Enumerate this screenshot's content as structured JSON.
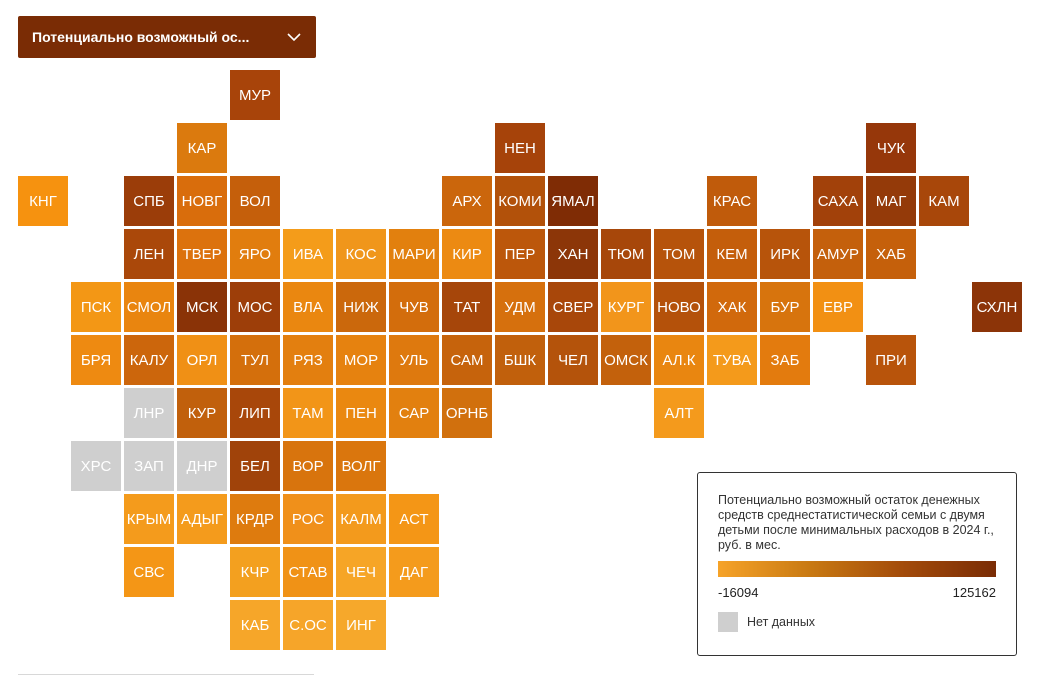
{
  "dropdown": {
    "label": "Потенциально возможный ос...",
    "icon": "chevron-down-icon"
  },
  "legend": {
    "title": "Потенциально возможный остаток денежных средств среднестатистической семьи с двумя детьми после минимальных расходов в 2024 г., руб. в мес.",
    "min_label": "-16094",
    "max_label": "125162",
    "gradient_colors": [
      "#f6a329",
      "#c87912",
      "#a34b0a",
      "#7a2c05"
    ],
    "no_data_label": "Нет данных",
    "no_data_color": "#cfcfcf"
  },
  "tiles": [
    {
      "code": "МУР",
      "row": 0,
      "col": 4,
      "color": "#a8440a"
    },
    {
      "code": "КАР",
      "row": 1,
      "col": 3,
      "color": "#db7a0e"
    },
    {
      "code": "НЕН",
      "row": 1,
      "col": 9,
      "color": "#a6430a"
    },
    {
      "code": "ЧУК",
      "row": 1,
      "col": 16,
      "color": "#96370a"
    },
    {
      "code": "КНГ",
      "row": 2,
      "col": 0,
      "color": "#f6920f"
    },
    {
      "code": "СПБ",
      "row": 2,
      "col": 2,
      "color": "#9b3d09"
    },
    {
      "code": "НОВГ",
      "row": 2,
      "col": 3,
      "color": "#d96d0c"
    },
    {
      "code": "ВОЛ",
      "row": 2,
      "col": 4,
      "color": "#c55f0b"
    },
    {
      "code": "АРХ",
      "row": 2,
      "col": 8,
      "color": "#cb660c"
    },
    {
      "code": "КОМИ",
      "row": 2,
      "col": 9,
      "color": "#b2510a"
    },
    {
      "code": "ЯМАЛ",
      "row": 2,
      "col": 10,
      "color": "#7f2c05"
    },
    {
      "code": "КРАС",
      "row": 2,
      "col": 13,
      "color": "#c05b0b"
    },
    {
      "code": "САХА",
      "row": 2,
      "col": 15,
      "color": "#a2410a"
    },
    {
      "code": "МАГ",
      "row": 2,
      "col": 16,
      "color": "#943a09"
    },
    {
      "code": "КАМ",
      "row": 2,
      "col": 17,
      "color": "#a8470a"
    },
    {
      "code": "ЛЕН",
      "row": 3,
      "col": 2,
      "color": "#aa480a"
    },
    {
      "code": "ТВЕР",
      "row": 3,
      "col": 3,
      "color": "#dc720d"
    },
    {
      "code": "ЯРО",
      "row": 3,
      "col": 4,
      "color": "#e17d0e"
    },
    {
      "code": "ИВА",
      "row": 3,
      "col": 5,
      "color": "#f49c1a"
    },
    {
      "code": "КОС",
      "row": 3,
      "col": 6,
      "color": "#f0961b"
    },
    {
      "code": "МАРИ",
      "row": 3,
      "col": 7,
      "color": "#e2800e"
    },
    {
      "code": "КИР",
      "row": 3,
      "col": 8,
      "color": "#ec8a12"
    },
    {
      "code": "ПЕР",
      "row": 3,
      "col": 9,
      "color": "#bc570b"
    },
    {
      "code": "ХАН",
      "row": 3,
      "col": 10,
      "color": "#8c3608"
    },
    {
      "code": "ТЮМ",
      "row": 3,
      "col": 11,
      "color": "#a7470a"
    },
    {
      "code": "ТОМ",
      "row": 3,
      "col": 12,
      "color": "#b6530b"
    },
    {
      "code": "КЕМ",
      "row": 3,
      "col": 13,
      "color": "#c45e0b"
    },
    {
      "code": "ИРК",
      "row": 3,
      "col": 14,
      "color": "#b7540b"
    },
    {
      "code": "АМУР",
      "row": 3,
      "col": 15,
      "color": "#c4600c"
    },
    {
      "code": "ХАБ",
      "row": 3,
      "col": 16,
      "color": "#c5600b"
    },
    {
      "code": "ПСК",
      "row": 4,
      "col": 1,
      "color": "#f39715"
    },
    {
      "code": "СМОЛ",
      "row": 4,
      "col": 2,
      "color": "#e9850f"
    },
    {
      "code": "МСК",
      "row": 4,
      "col": 3,
      "color": "#8a3307"
    },
    {
      "code": "МОС",
      "row": 4,
      "col": 4,
      "color": "#9d3e09"
    },
    {
      "code": "ВЛА",
      "row": 4,
      "col": 5,
      "color": "#ea8710"
    },
    {
      "code": "НИЖ",
      "row": 4,
      "col": 6,
      "color": "#cb680c"
    },
    {
      "code": "ЧУВ",
      "row": 4,
      "col": 7,
      "color": "#d36d0c"
    },
    {
      "code": "ТАТ",
      "row": 4,
      "col": 8,
      "color": "#a6460a"
    },
    {
      "code": "УДМ",
      "row": 4,
      "col": 9,
      "color": "#d6700d"
    },
    {
      "code": "СВЕР",
      "row": 4,
      "col": 10,
      "color": "#a8470a"
    },
    {
      "code": "КУРГ",
      "row": 4,
      "col": 11,
      "color": "#f2951b"
    },
    {
      "code": "НОВО",
      "row": 4,
      "col": 12,
      "color": "#b4510a"
    },
    {
      "code": "ХАК",
      "row": 4,
      "col": 13,
      "color": "#d1690c"
    },
    {
      "code": "БУР",
      "row": 4,
      "col": 14,
      "color": "#d7740d"
    },
    {
      "code": "ЕВР",
      "row": 4,
      "col": 15,
      "color": "#f29013"
    },
    {
      "code": "СХЛН",
      "row": 4,
      "col": 18,
      "color": "#8c3408"
    },
    {
      "code": "БРЯ",
      "row": 5,
      "col": 1,
      "color": "#ee8a11"
    },
    {
      "code": "КАЛУ",
      "row": 5,
      "col": 2,
      "color": "#cc660c"
    },
    {
      "code": "ОРЛ",
      "row": 5,
      "col": 3,
      "color": "#f09015"
    },
    {
      "code": "ТУЛ",
      "row": 5,
      "col": 4,
      "color": "#d46f0c"
    },
    {
      "code": "РЯЗ",
      "row": 5,
      "col": 5,
      "color": "#e37f0f"
    },
    {
      "code": "МОР",
      "row": 5,
      "col": 6,
      "color": "#e6820f"
    },
    {
      "code": "УЛЬ",
      "row": 5,
      "col": 7,
      "color": "#de790e"
    },
    {
      "code": "САМ",
      "row": 5,
      "col": 8,
      "color": "#c6630c"
    },
    {
      "code": "БШК",
      "row": 5,
      "col": 9,
      "color": "#c1600c"
    },
    {
      "code": "ЧЕЛ",
      "row": 5,
      "col": 10,
      "color": "#b4530b"
    },
    {
      "code": "ОМСК",
      "row": 5,
      "col": 11,
      "color": "#c3610c"
    },
    {
      "code": "АЛ.К",
      "row": 5,
      "col": 12,
      "color": "#e98610"
    },
    {
      "code": "ТУВА",
      "row": 5,
      "col": 13,
      "color": "#f49a1b"
    },
    {
      "code": "ЗАБ",
      "row": 5,
      "col": 14,
      "color": "#e37b0e"
    },
    {
      "code": "ПРИ",
      "row": 5,
      "col": 16,
      "color": "#b8540b"
    },
    {
      "code": "ЛНР",
      "row": 6,
      "col": 2,
      "color": "#cfcfcf"
    },
    {
      "code": "КУР",
      "row": 6,
      "col": 3,
      "color": "#c1600c"
    },
    {
      "code": "ЛИП",
      "row": 6,
      "col": 4,
      "color": "#a8470a"
    },
    {
      "code": "ТАМ",
      "row": 6,
      "col": 5,
      "color": "#f29518"
    },
    {
      "code": "ПЕН",
      "row": 6,
      "col": 6,
      "color": "#ea8810"
    },
    {
      "code": "САР",
      "row": 6,
      "col": 7,
      "color": "#e2800f"
    },
    {
      "code": "ОРНБ",
      "row": 6,
      "col": 8,
      "color": "#d1700d"
    },
    {
      "code": "АЛТ",
      "row": 6,
      "col": 12,
      "color": "#f49a1c"
    },
    {
      "code": "ХРС",
      "row": 7,
      "col": 1,
      "color": "#cfcfcf"
    },
    {
      "code": "ЗАП",
      "row": 7,
      "col": 2,
      "color": "#cfcfcf"
    },
    {
      "code": "ДНР",
      "row": 7,
      "col": 3,
      "color": "#cfcfcf"
    },
    {
      "code": "БЕЛ",
      "row": 7,
      "col": 4,
      "color": "#a0430a"
    },
    {
      "code": "ВОР",
      "row": 7,
      "col": 5,
      "color": "#d8740d"
    },
    {
      "code": "ВОЛГ",
      "row": 7,
      "col": 6,
      "color": "#da760d"
    },
    {
      "code": "КРЫМ",
      "row": 8,
      "col": 2,
      "color": "#f49b1c"
    },
    {
      "code": "АДЫГ",
      "row": 8,
      "col": 3,
      "color": "#f49b1c"
    },
    {
      "code": "КРДР",
      "row": 8,
      "col": 4,
      "color": "#de7b0e"
    },
    {
      "code": "РОС",
      "row": 8,
      "col": 5,
      "color": "#f0901a"
    },
    {
      "code": "КАЛМ",
      "row": 8,
      "col": 6,
      "color": "#f39a1c"
    },
    {
      "code": "АСТ",
      "row": 8,
      "col": 7,
      "color": "#f49616"
    },
    {
      "code": "СВС",
      "row": 9,
      "col": 2,
      "color": "#f49616"
    },
    {
      "code": "КЧР",
      "row": 9,
      "col": 4,
      "color": "#f3a01f"
    },
    {
      "code": "СТАВ",
      "row": 9,
      "col": 5,
      "color": "#f09216"
    },
    {
      "code": "ЧЕЧ",
      "row": 9,
      "col": 6,
      "color": "#f6a526"
    },
    {
      "code": "ДАГ",
      "row": 9,
      "col": 7,
      "color": "#f49b1c"
    },
    {
      "code": "КАБ",
      "row": 10,
      "col": 4,
      "color": "#f6a629"
    },
    {
      "code": "С.ОС",
      "row": 10,
      "col": 5,
      "color": "#f6a529"
    },
    {
      "code": "ИНГ",
      "row": 10,
      "col": 6,
      "color": "#f6a82b"
    }
  ]
}
